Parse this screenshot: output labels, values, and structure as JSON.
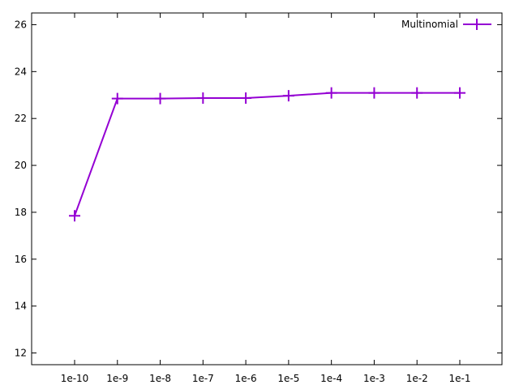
{
  "chart_data": {
    "type": "line",
    "x": [
      "1e-10",
      "1e-9",
      "1e-8",
      "1e-7",
      "1e-6",
      "1e-5",
      "1e-4",
      "1e-3",
      "1e-2",
      "1e-1"
    ],
    "series": [
      {
        "name": "Multinomial",
        "values": [
          17.85,
          22.85,
          22.85,
          22.87,
          22.87,
          22.97,
          23.09,
          23.09,
          23.09,
          23.09
        ],
        "color": "#9400d3",
        "marker": "plus"
      }
    ],
    "x_scale": "log",
    "ylim": [
      11.5,
      26.5
    ],
    "yticks": [
      12,
      14,
      16,
      18,
      20,
      22,
      24,
      26
    ],
    "grid": false,
    "legend_position": "top-right"
  }
}
